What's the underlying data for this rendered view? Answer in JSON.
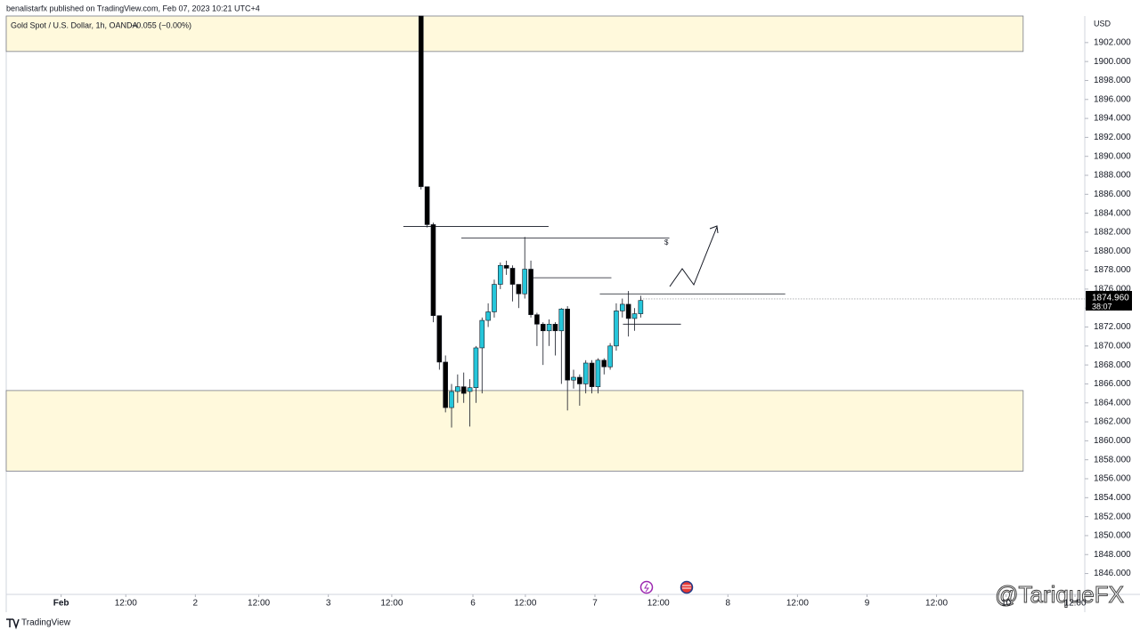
{
  "header": {
    "title": "benalistarfx published on TradingView.com, Feb 07, 2023 10:21 UTC+4"
  },
  "footer": {
    "brand": "TradingView",
    "watermark": "@TariqueFX"
  },
  "chart_data": {
    "type": "candlestick",
    "title": "Gold Spot / U.S. Dollar, 1h, OANDA",
    "subtitle": "−0.055 (−0.00%)",
    "y_axis_label": "USD",
    "up_color": "#26c6da",
    "down_color": "#000000",
    "x": [
      0,
      1,
      2,
      3,
      4,
      5,
      6,
      7,
      8,
      9,
      10,
      11,
      12,
      13,
      14,
      15,
      16,
      17,
      18,
      19,
      20,
      21,
      22,
      23,
      24,
      25,
      26,
      27,
      28,
      29,
      30,
      31,
      32,
      33,
      34,
      35,
      36
    ],
    "open": [
      1904.8,
      1886.8,
      1882.8,
      1873.2,
      1868.3,
      1863.5,
      1865.2,
      1865.7,
      1865.2,
      1865.6,
      1869.8,
      1872.7,
      1873.6,
      1876.5,
      1878.5,
      1878.2,
      1876.5,
      1875.5,
      1878.1,
      1873.3,
      1872.3,
      1871.6,
      1872.3,
      1871.6,
      1873.9,
      1866.4,
      1866.7,
      1866.0,
      1868.2,
      1865.7,
      1868.5,
      1867.8,
      1870.0,
      1873.7,
      1874.4,
      1872.9,
      1873.4
    ],
    "high": [
      1904.8,
      1886.8,
      1883.0,
      1873.2,
      1869.0,
      1866.0,
      1867.0,
      1867.2,
      1866.5,
      1870.0,
      1873.0,
      1874.5,
      1877.0,
      1878.8,
      1879.0,
      1878.5,
      1876.5,
      1881.5,
      1879.0,
      1873.5,
      1872.5,
      1872.8,
      1872.5,
      1874.0,
      1874.2,
      1867.5,
      1867.0,
      1868.5,
      1868.5,
      1868.7,
      1868.7,
      1870.3,
      1874.5,
      1875.0,
      1875.8,
      1874.0,
      1875.3
    ],
    "low": [
      1886.5,
      1882.5,
      1872.5,
      1867.5,
      1863.0,
      1861.4,
      1864.0,
      1864.0,
      1861.5,
      1864.0,
      1865.0,
      1872.0,
      1873.0,
      1876.0,
      1877.5,
      1874.7,
      1874.0,
      1875.0,
      1873.0,
      1870.0,
      1868.0,
      1870.0,
      1869.0,
      1866.0,
      1863.2,
      1865.5,
      1863.7,
      1865.0,
      1865.0,
      1865.0,
      1867.0,
      1867.5,
      1869.5,
      1873.0,
      1871.0,
      1871.6,
      1873.0
    ],
    "close": [
      1886.8,
      1882.8,
      1873.2,
      1868.3,
      1863.5,
      1865.2,
      1865.7,
      1865.0,
      1865.6,
      1869.8,
      1872.7,
      1873.6,
      1876.5,
      1878.5,
      1878.2,
      1876.5,
      1875.5,
      1878.1,
      1873.3,
      1872.3,
      1871.6,
      1872.3,
      1871.6,
      1873.9,
      1866.4,
      1866.7,
      1866.0,
      1868.2,
      1865.7,
      1868.5,
      1867.8,
      1870.0,
      1873.7,
      1874.4,
      1872.9,
      1873.4,
      1874.8
    ],
    "last_price": {
      "value": 1874.96,
      "label": "1874.960"
    },
    "countdown": "38:07",
    "zones": [
      {
        "ylim": [
          1901.06,
          1904.8
        ],
        "xlim": [
          -68,
          98.7
        ]
      },
      {
        "ylim": [
          1856.8,
          1865.3
        ],
        "xlim": [
          -68,
          98.7
        ]
      }
    ],
    "levels": [
      {
        "y": 1882.6,
        "x": [
          -2.9,
          20.9
        ]
      },
      {
        "y": 1881.4,
        "x": [
          6.6,
          40.7
        ]
      },
      {
        "y": 1877.2,
        "x": [
          18,
          31.2
        ]
      },
      {
        "y": 1875.5,
        "x": [
          29.3,
          59.7
        ]
      },
      {
        "y": 1872.3,
        "x": [
          33.1,
          42.6
        ]
      }
    ],
    "annotation": "$",
    "xlim": [
      -68,
      108.8
    ],
    "ylim": [
      1843.8,
      1904.8
    ],
    "xticks": [
      {
        "value": -59,
        "label": "Feb"
      },
      {
        "value": -48.4,
        "label": "12:00"
      },
      {
        "value": -37,
        "label": "2"
      },
      {
        "value": -26.6,
        "label": "12:00"
      },
      {
        "value": -15.2,
        "label": "3"
      },
      {
        "value": -4.8,
        "label": "12:00"
      },
      {
        "value": 8.5,
        "label": "6"
      },
      {
        "value": 17.1,
        "label": "12:00"
      },
      {
        "value": 28.5,
        "label": "7"
      },
      {
        "value": 38.9,
        "label": "12:00"
      },
      {
        "value": 50.3,
        "label": "8"
      },
      {
        "value": 61.7,
        "label": "12:00"
      },
      {
        "value": 73.1,
        "label": "9"
      },
      {
        "value": 84.5,
        "label": "12:00"
      },
      {
        "value": 95.9,
        "label": "10"
      },
      {
        "value": 107.2,
        "label": "12:00"
      }
    ],
    "yticks": [
      {
        "value": 1846,
        "label": "1846.000"
      },
      {
        "value": 1848,
        "label": "1848.000"
      },
      {
        "value": 1850,
        "label": "1850.000"
      },
      {
        "value": 1852,
        "label": "1852.000"
      },
      {
        "value": 1854,
        "label": "1854.000"
      },
      {
        "value": 1856,
        "label": "1856.000"
      },
      {
        "value": 1858,
        "label": "1858.000"
      },
      {
        "value": 1860,
        "label": "1860.000"
      },
      {
        "value": 1862,
        "label": "1862.000"
      },
      {
        "value": 1864,
        "label": "1864.000"
      },
      {
        "value": 1866,
        "label": "1866.000"
      },
      {
        "value": 1868,
        "label": "1868.000"
      },
      {
        "value": 1870,
        "label": "1870.000"
      },
      {
        "value": 1872,
        "label": "1872.000"
      },
      {
        "value": 1874,
        "label": "1874.000"
      },
      {
        "value": 1876,
        "label": "1876.000"
      },
      {
        "value": 1878,
        "label": "1878.000"
      },
      {
        "value": 1880,
        "label": "1880.000"
      },
      {
        "value": 1882,
        "label": "1882.000"
      },
      {
        "value": 1884,
        "label": "1884.000"
      },
      {
        "value": 1886,
        "label": "1886.000"
      },
      {
        "value": 1888,
        "label": "1888.000"
      },
      {
        "value": 1890,
        "label": "1890.000"
      },
      {
        "value": 1892,
        "label": "1892.000"
      },
      {
        "value": 1894,
        "label": "1894.000"
      },
      {
        "value": 1896,
        "label": "1896.000"
      },
      {
        "value": 1898,
        "label": "1898.000"
      },
      {
        "value": 1900,
        "label": "1900.000"
      },
      {
        "value": 1902,
        "label": "1902.000"
      }
    ]
  }
}
